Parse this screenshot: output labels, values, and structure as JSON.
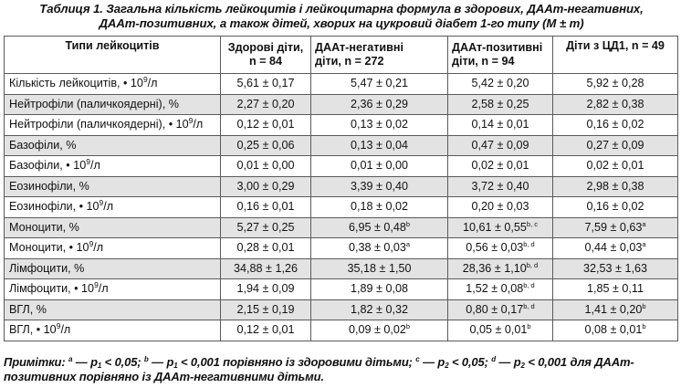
{
  "caption": {
    "line1": "Таблиця 1. Загальна кількість лейкоцитів і лейкоцитарна формула в здорових, ДААт-негативних,",
    "line2": "ДААт-позитивних, а також дітей, хворих на цукровий діабет 1-го типу (M ± m)"
  },
  "table": {
    "headers": [
      {
        "line1": "Типи лейкоцитів",
        "line2": ""
      },
      {
        "line1": "Здорові діти,",
        "line2": "n = 84"
      },
      {
        "line1": "ДААт-негативні",
        "line2": "діти, n = 272"
      },
      {
        "line1": "ДААт-позитивні",
        "line2": "діти, n = 94"
      },
      {
        "line1": "Діти з ЦД1, n = 49",
        "line2": ""
      }
    ],
    "rows": [
      {
        "label": "Кількість лейкоцитів, • 10",
        "unit_exp": "9",
        "unit_tail": "/л",
        "cells": [
          {
            "v": "5,61 ± 0,17",
            "m": ""
          },
          {
            "v": "5,47 ± 0,21",
            "m": ""
          },
          {
            "v": "5,42 ± 0,20",
            "m": ""
          },
          {
            "v": "5,92 ± 0,28",
            "m": ""
          }
        ]
      },
      {
        "label": "Нейтрофіли (паличкоядерні), %",
        "unit_exp": "",
        "unit_tail": "",
        "cells": [
          {
            "v": "2,27 ± 0,20",
            "m": ""
          },
          {
            "v": "2,36 ± 0,29",
            "m": ""
          },
          {
            "v": "2,58 ± 0,25",
            "m": ""
          },
          {
            "v": "2,82 ± 0,38",
            "m": ""
          }
        ]
      },
      {
        "label": "Нейтрофіли (паличкоядерні), • 10",
        "unit_exp": "9",
        "unit_tail": "/л",
        "cells": [
          {
            "v": "0,12 ± 0,01",
            "m": ""
          },
          {
            "v": "0,13 ± 0,02",
            "m": ""
          },
          {
            "v": "0,14 ± 0,01",
            "m": ""
          },
          {
            "v": "0,16 ± 0,02",
            "m": ""
          }
        ]
      },
      {
        "label": "Базофіли, %",
        "unit_exp": "",
        "unit_tail": "",
        "cells": [
          {
            "v": "0,25 ± 0,06",
            "m": ""
          },
          {
            "v": "0,13 ± 0,04",
            "m": ""
          },
          {
            "v": "0,47 ± 0,09",
            "m": ""
          },
          {
            "v": "0,27 ± 0,09",
            "m": ""
          }
        ]
      },
      {
        "label": "Базофіли, • 10",
        "unit_exp": "9",
        "unit_tail": "/л",
        "cells": [
          {
            "v": "0,01 ± 0,00",
            "m": ""
          },
          {
            "v": "0,01 ± 0,00",
            "m": ""
          },
          {
            "v": "0,02 ± 0,01",
            "m": ""
          },
          {
            "v": "0,02 ± 0,01",
            "m": ""
          }
        ]
      },
      {
        "label": "Еозинофіли, %",
        "unit_exp": "",
        "unit_tail": "",
        "cells": [
          {
            "v": "3,00 ± 0,29",
            "m": ""
          },
          {
            "v": "3,39 ± 0,40",
            "m": ""
          },
          {
            "v": "3,72 ± 0,40",
            "m": ""
          },
          {
            "v": "2,98 ± 0,38",
            "m": ""
          }
        ]
      },
      {
        "label": "Еозинофіли, • 10",
        "unit_exp": "9",
        "unit_tail": "/л",
        "cells": [
          {
            "v": "0,16 ± 0,01",
            "m": ""
          },
          {
            "v": "0,18 ± 0,02",
            "m": ""
          },
          {
            "v": "0,20 ± 0,03",
            "m": ""
          },
          {
            "v": "0,16 ± 0,02",
            "m": ""
          }
        ]
      },
      {
        "label": "Моноцити, %",
        "unit_exp": "",
        "unit_tail": "",
        "cells": [
          {
            "v": "5,27 ± 0,25",
            "m": ""
          },
          {
            "v": "6,95 ± 0,48",
            "m": "b"
          },
          {
            "v": "10,61 ± 0,55",
            "m": "b, c"
          },
          {
            "v": "7,59 ± 0,63",
            "m": "a"
          }
        ]
      },
      {
        "label": "Моноцити, • 10",
        "unit_exp": "9",
        "unit_tail": "/л",
        "cells": [
          {
            "v": "0,28 ± 0,01",
            "m": ""
          },
          {
            "v": "0,38 ± 0,03",
            "m": "a"
          },
          {
            "v": "0,56 ± 0,03",
            "m": "b, d"
          },
          {
            "v": "0,44 ± 0,03",
            "m": "a"
          }
        ]
      },
      {
        "label": "Лімфоцити, %",
        "unit_exp": "",
        "unit_tail": "",
        "cells": [
          {
            "v": "34,88 ± 1,26",
            "m": ""
          },
          {
            "v": "35,18 ± 1,50",
            "m": ""
          },
          {
            "v": "28,36 ± 1,10",
            "m": "b, d"
          },
          {
            "v": "32,53 ± 1,63",
            "m": ""
          }
        ]
      },
      {
        "label": "Лімфоцити, • 10",
        "unit_exp": "9",
        "unit_tail": "/л",
        "cells": [
          {
            "v": "1,94 ± 0,09",
            "m": ""
          },
          {
            "v": "1,89 ± 0,08",
            "m": ""
          },
          {
            "v": "1,52 ± 0,08",
            "m": "b, d"
          },
          {
            "v": "1,85 ± 0,11",
            "m": ""
          }
        ]
      },
      {
        "label": "ВГЛ, %",
        "unit_exp": "",
        "unit_tail": "",
        "cells": [
          {
            "v": "2,15 ± 0,19",
            "m": ""
          },
          {
            "v": "1,82 ± 0,32",
            "m": ""
          },
          {
            "v": "0,80 ± 0,17",
            "m": "b, d"
          },
          {
            "v": "1,41 ± 0,20",
            "m": "b"
          }
        ]
      },
      {
        "label": "ВГЛ, • 10",
        "unit_exp": "9",
        "unit_tail": "/л",
        "cells": [
          {
            "v": "0,12 ± 0,01",
            "m": ""
          },
          {
            "v": "0,09 ± 0,02",
            "m": "b"
          },
          {
            "v": "0,05 ± 0,01",
            "m": "b"
          },
          {
            "v": "0,08 ± 0,01",
            "m": "b"
          }
        ]
      }
    ]
  },
  "notes": {
    "prefix": "Примітки: ",
    "items": [
      {
        "mark": "a",
        "text_before_sub": " — p",
        "sub": "1",
        "text_after_sub": " < 0,05; "
      },
      {
        "mark": "b",
        "text_before_sub": " — p",
        "sub": "1",
        "text_after_sub": " < 0,001 порівняно із здоровими дітьми; "
      },
      {
        "mark": "c",
        "text_before_sub": " — p",
        "sub": "2",
        "text_after_sub": " < 0,05; "
      },
      {
        "mark": "d",
        "text_before_sub": " — p",
        "sub": "2",
        "text_after_sub": " < 0,001 для ДААт-позитивних порівняно із ДААт-негативними дітьми."
      }
    ]
  },
  "colors": {
    "row_alt": "#e3e3e3",
    "row_base": "#ffffff",
    "border": "#5a5a5a"
  }
}
